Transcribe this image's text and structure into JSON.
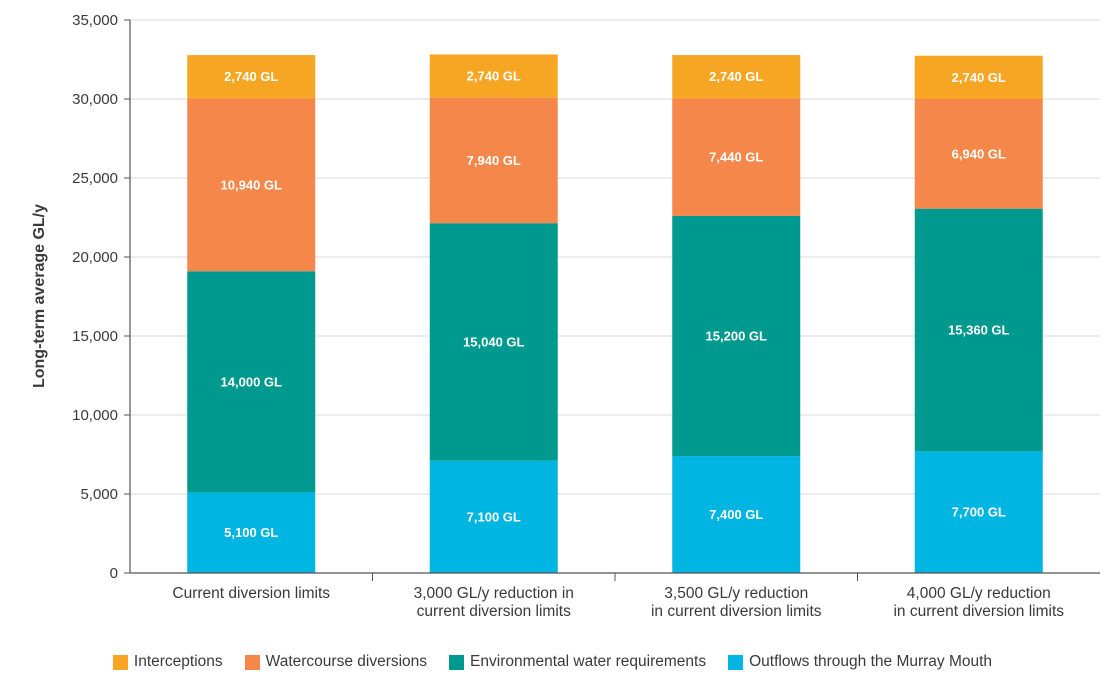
{
  "chart_data": {
    "type": "bar",
    "stacked": true,
    "ylabel": "Long-term average GL/y",
    "xlabel": "",
    "ylim": [
      0,
      35000
    ],
    "yticks": [
      0,
      5000,
      10000,
      15000,
      20000,
      25000,
      30000,
      35000
    ],
    "ytick_labels": [
      "0",
      "5,000",
      "10,000",
      "15,000",
      "20,000",
      "25,000",
      "30,000",
      "35,000"
    ],
    "grid": true,
    "legend_position": "bottom",
    "categories": [
      [
        "Current diversion limits"
      ],
      [
        "3,000 GL/y reduction in",
        "current diversion limits"
      ],
      [
        "3,500 GL/y reduction",
        "in current diversion limits"
      ],
      [
        "4,000 GL/y reduction",
        "in current diversion limits"
      ]
    ],
    "series": [
      {
        "name": "Outflows through the Murray Mouth",
        "color": "#00b5e2",
        "values": [
          5100,
          7100,
          7400,
          7700
        ],
        "labels": [
          "5,100 GL",
          "7,100 GL",
          "7,400 GL",
          "7,700 GL"
        ]
      },
      {
        "name": "Environmental water requirements",
        "color": "#009990",
        "values": [
          14000,
          15040,
          15200,
          15360
        ],
        "labels": [
          "14,000 GL",
          "15,040 GL",
          "15,200 GL",
          "15,360 GL"
        ]
      },
      {
        "name": "Watercourse diversions",
        "color": "#f5874a",
        "values": [
          10940,
          7940,
          7440,
          6940
        ],
        "labels": [
          "10,940 GL",
          "7,940 GL",
          "7,440 GL",
          "6,940 GL"
        ]
      },
      {
        "name": "Interceptions",
        "color": "#f6a623",
        "values": [
          2740,
          2740,
          2740,
          2740
        ],
        "labels": [
          "2,740 GL",
          "2,740 GL",
          "2,740 GL",
          "2,740 GL"
        ]
      }
    ]
  },
  "legend": {
    "items": [
      {
        "label": "Interceptions",
        "color": "#f6a623"
      },
      {
        "label": "Watercourse diversions",
        "color": "#f5874a"
      },
      {
        "label": "Environmental water requirements",
        "color": "#009990"
      },
      {
        "label": "Outflows through the Murray Mouth",
        "color": "#00b5e2"
      }
    ]
  }
}
